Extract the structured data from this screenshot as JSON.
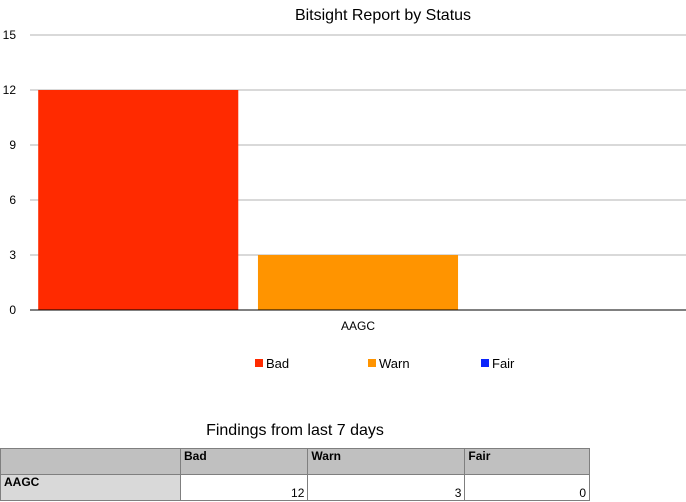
{
  "chart_data": {
    "type": "bar",
    "title": "Bitsight Report by Status",
    "categories": [
      "AAGC"
    ],
    "series": [
      {
        "name": "Bad",
        "values": [
          12
        ],
        "color": "#ff2a00"
      },
      {
        "name": "Warn",
        "values": [
          3
        ],
        "color": "#ff9400"
      },
      {
        "name": "Fair",
        "values": [
          0
        ],
        "color": "#0b24fb"
      }
    ],
    "ylim": [
      0,
      15
    ],
    "yticks": [
      0,
      3,
      6,
      9,
      12,
      15
    ],
    "grid": true,
    "legend": "bottom"
  },
  "table": {
    "title": "Findings from last 7 days",
    "columns": [
      "",
      "Bad",
      "Warn",
      "Fair"
    ],
    "rows": [
      {
        "label": "AAGC",
        "values": [
          "12",
          "3",
          "0"
        ]
      }
    ]
  }
}
